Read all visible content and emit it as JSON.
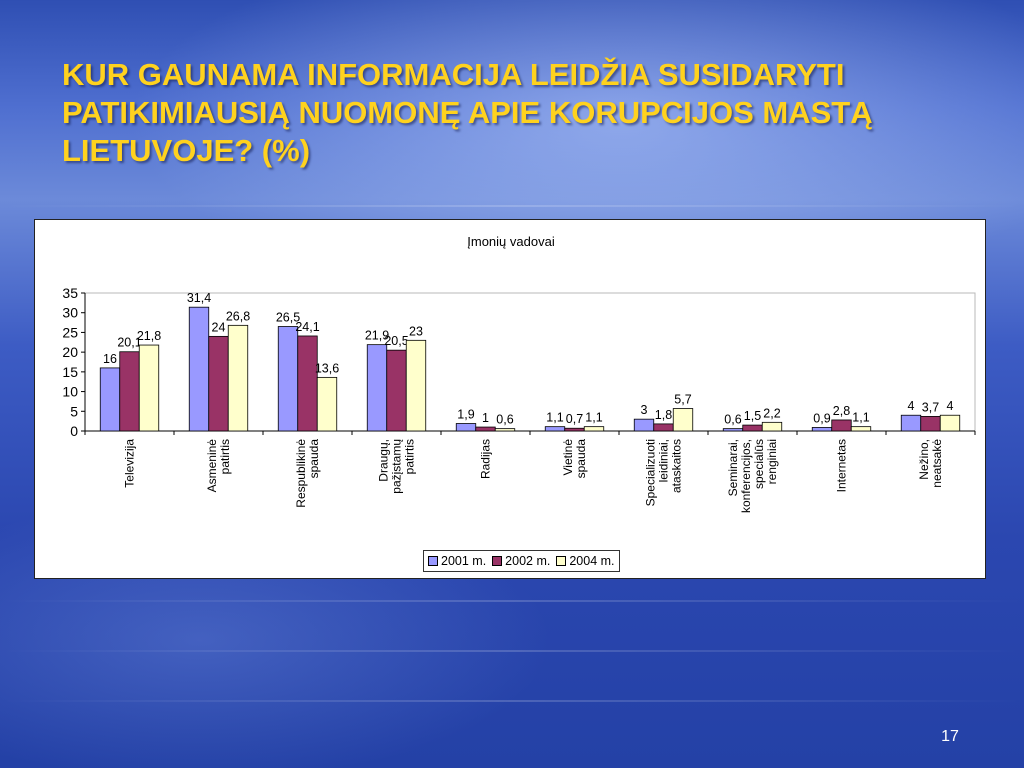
{
  "slide": {
    "title": "KUR GAUNAMA INFORMACIJA LEIDŽIA SUSIDARYTI PATIKIMIAUSIĄ NUOMONĘ APIE KORUPCIJOS MASTĄ LIETUVOJE? (%)",
    "page_number": "17"
  },
  "chart_data": {
    "type": "bar",
    "title": "Įmonių vadovai",
    "xlabel": "",
    "ylabel": "",
    "ylim": [
      0,
      35
    ],
    "yticks": [
      0,
      5,
      10,
      15,
      20,
      25,
      30,
      35
    ],
    "grid": false,
    "legend_position": "bottom",
    "categories": [
      [
        "Televizija"
      ],
      [
        "Asmeninė",
        "patirtis"
      ],
      [
        "Respublikinė",
        "spauda"
      ],
      [
        "Draugų,",
        "pažįstamų",
        "patirtis"
      ],
      [
        "Radijas"
      ],
      [
        "Vietinė",
        "spauda"
      ],
      [
        "Specializuoti",
        "leidiniai,",
        "ataskaitos"
      ],
      [
        "Seminarai,",
        "konferencijos,",
        "specialūs",
        "renginiai"
      ],
      [
        "Internetas"
      ],
      [
        "Nežino,",
        "neatsakė"
      ]
    ],
    "series": [
      {
        "name": "2001 m.",
        "color": "#9999ff",
        "values": [
          16,
          31.4,
          26.5,
          21.9,
          1.9,
          1.1,
          3,
          0.6,
          0.9,
          4
        ],
        "labels": [
          "16",
          "31,4",
          "26,5",
          "21,9",
          "1,9",
          "1,1",
          "3",
          "0,6",
          "0,9",
          "4"
        ]
      },
      {
        "name": "2002 m.",
        "color": "#993366",
        "values": [
          20.1,
          24,
          24.1,
          20.5,
          1,
          0.7,
          1.8,
          1.5,
          2.8,
          3.7
        ],
        "labels": [
          "20,1",
          "24",
          "24,1",
          "20,5",
          "1",
          "0,7",
          "1,8",
          "1,5",
          "2,8",
          "3,7"
        ]
      },
      {
        "name": "2004 m.",
        "color": "#ffffcc",
        "values": [
          21.8,
          26.8,
          13.6,
          23,
          0.6,
          1.1,
          5.7,
          2.2,
          1.1,
          4
        ],
        "labels": [
          "21,8",
          "26,8",
          "13,6",
          "23",
          "0,6",
          "1,1",
          "5,7",
          "2,2",
          "1,1",
          "4"
        ]
      }
    ]
  }
}
